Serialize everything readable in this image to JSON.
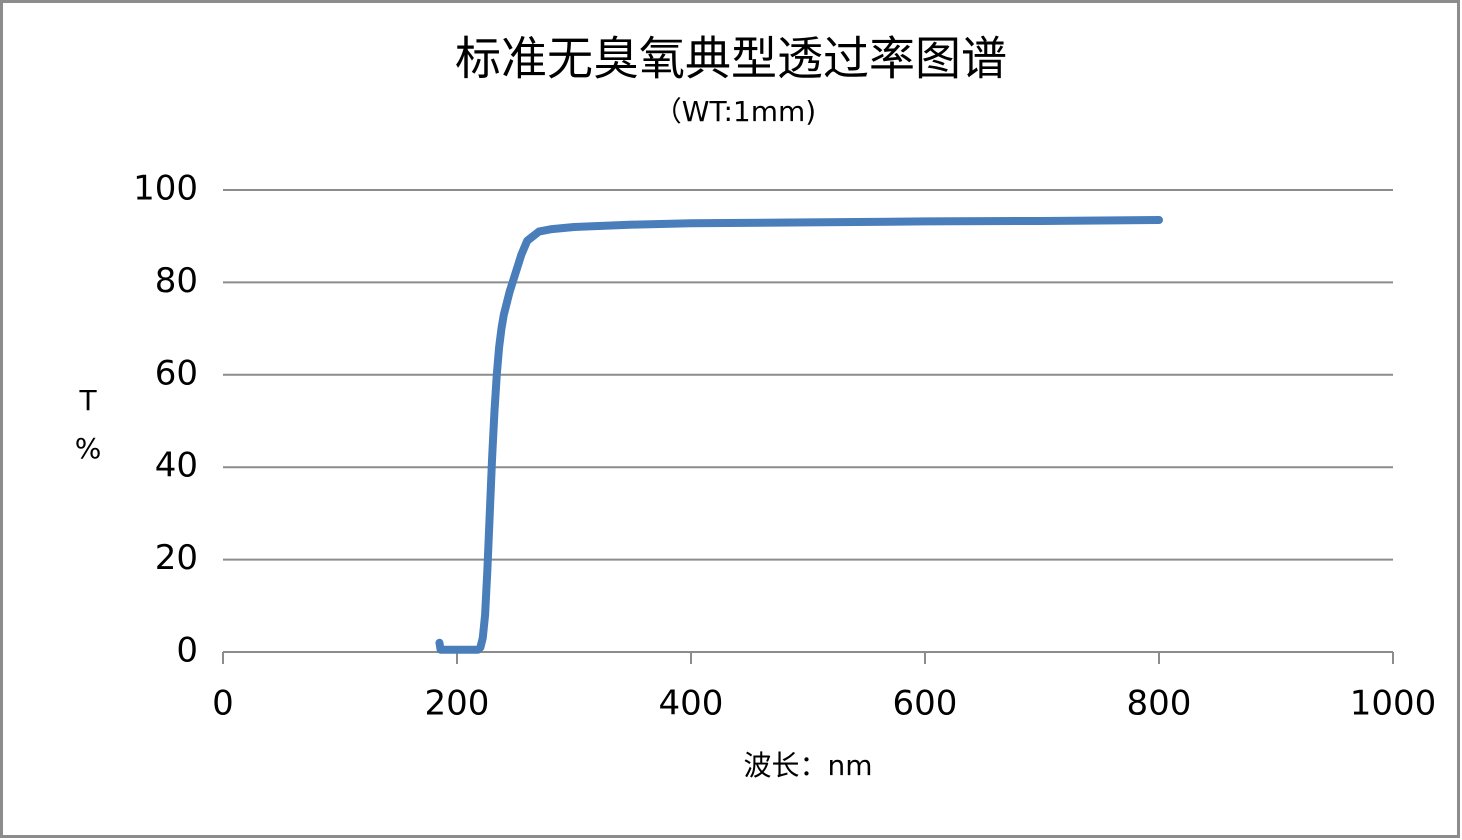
{
  "chart_data": {
    "type": "line",
    "title": "标准无臭氧典型透过率图谱",
    "subtitle": "（WT:1mm)",
    "xlabel": "波长：nm",
    "ylabel": [
      "T",
      "%"
    ],
    "x": [
      185,
      186,
      188,
      192,
      200,
      210,
      218,
      220,
      222,
      224,
      226,
      228,
      230,
      232,
      234,
      236,
      238,
      240,
      245,
      250,
      255,
      260,
      265,
      270,
      280,
      300,
      350,
      400,
      500,
      600,
      700,
      800
    ],
    "series": [
      {
        "color": "#4a7ebb",
        "values": [
          2,
          0.5,
          0.5,
          0.5,
          0.5,
          0.5,
          0.5,
          1,
          3,
          8,
          18,
          30,
          42,
          52,
          60,
          66,
          70,
          73,
          78,
          82,
          86,
          89,
          90,
          91,
          91.5,
          92,
          92.5,
          92.8,
          93,
          93.2,
          93.3,
          93.5
        ]
      }
    ],
    "xlim": [
      0,
      1000
    ],
    "xticks": [
      0,
      200,
      400,
      600,
      800,
      1000
    ],
    "ylim": [
      0,
      100
    ],
    "yticks": [
      0,
      20,
      40,
      60,
      80,
      100
    ],
    "grid": true
  }
}
